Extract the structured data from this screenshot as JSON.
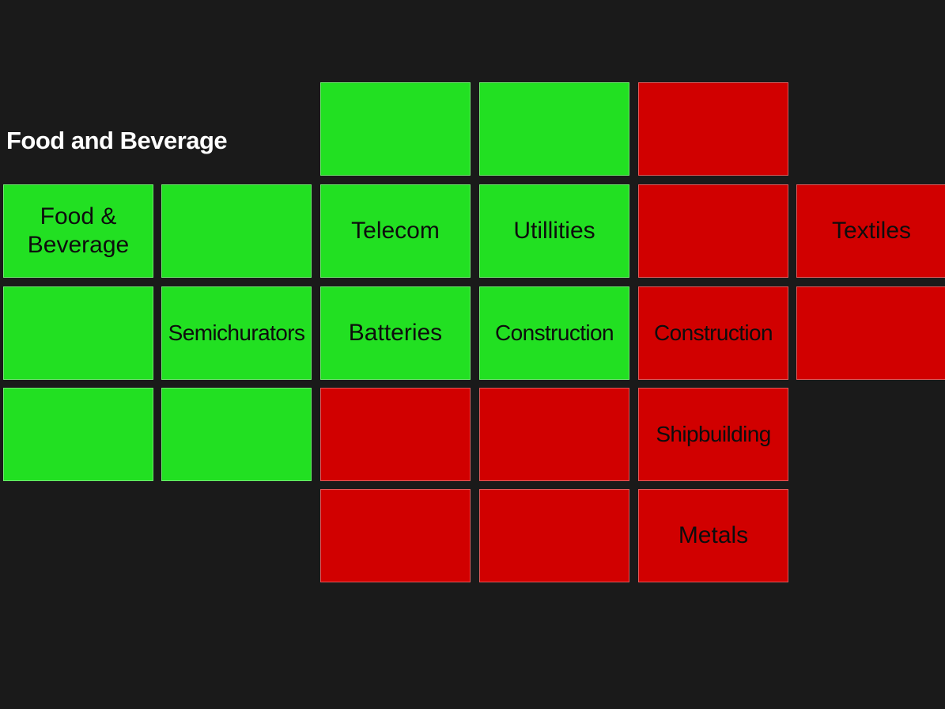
{
  "page": {
    "title": "Food and Beverage"
  },
  "colors": {
    "background": "#1a1a1a",
    "up": "#22e022",
    "down": "#d10000",
    "title_text": "#ffffff",
    "tile_text": "#0d0d0d"
  },
  "tiles": [
    {
      "row": 0,
      "col": 2,
      "label": "",
      "status": "up"
    },
    {
      "row": 0,
      "col": 3,
      "label": "",
      "status": "up"
    },
    {
      "row": 0,
      "col": 4,
      "label": "",
      "status": "down"
    },
    {
      "row": 1,
      "col": 0,
      "label": "Food &\nBeverage",
      "status": "up"
    },
    {
      "row": 1,
      "col": 1,
      "label": "",
      "status": "up"
    },
    {
      "row": 1,
      "col": 2,
      "label": "Telecom",
      "status": "up"
    },
    {
      "row": 1,
      "col": 3,
      "label": "Utillities",
      "status": "up"
    },
    {
      "row": 1,
      "col": 4,
      "label": "",
      "status": "down"
    },
    {
      "row": 1,
      "col": 5,
      "label": "Textiles",
      "status": "down"
    },
    {
      "row": 2,
      "col": 0,
      "label": "",
      "status": "up"
    },
    {
      "row": 2,
      "col": 1,
      "label": "Semichurators",
      "status": "up"
    },
    {
      "row": 2,
      "col": 2,
      "label": "Batteries",
      "status": "up"
    },
    {
      "row": 2,
      "col": 3,
      "label": "Construction",
      "status": "up"
    },
    {
      "row": 2,
      "col": 4,
      "label": "Construction",
      "status": "down"
    },
    {
      "row": 2,
      "col": 5,
      "label": "",
      "status": "down"
    },
    {
      "row": 3,
      "col": 0,
      "label": "",
      "status": "up"
    },
    {
      "row": 3,
      "col": 1,
      "label": "",
      "status": "up"
    },
    {
      "row": 3,
      "col": 2,
      "label": "",
      "status": "down"
    },
    {
      "row": 3,
      "col": 3,
      "label": "",
      "status": "down"
    },
    {
      "row": 3,
      "col": 4,
      "label": "Shipbuilding",
      "status": "down"
    },
    {
      "row": 4,
      "col": 2,
      "label": "",
      "status": "down"
    },
    {
      "row": 4,
      "col": 3,
      "label": "",
      "status": "down"
    },
    {
      "row": 4,
      "col": 4,
      "label": "Metals",
      "status": "down"
    }
  ]
}
